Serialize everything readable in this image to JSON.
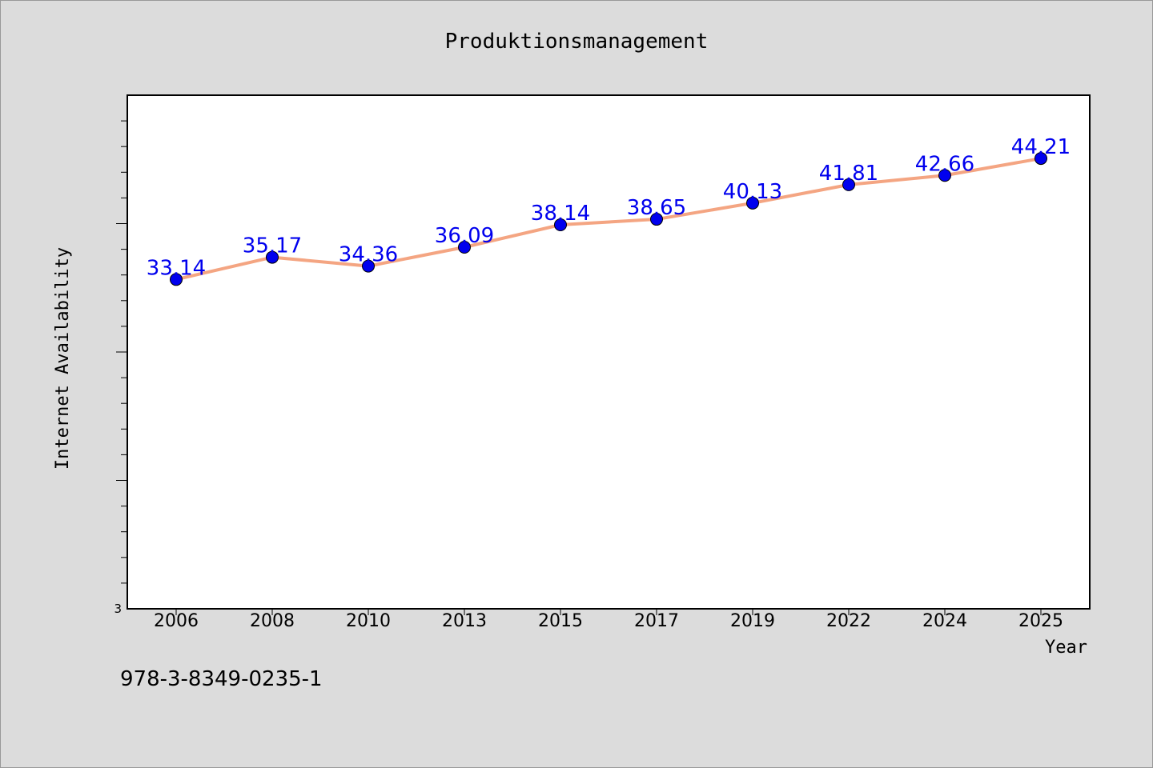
{
  "chart_data": {
    "type": "line",
    "title": "Produktionsmanagement",
    "xlabel": "Year",
    "ylabel": "Internet Availability",
    "categories": [
      "2006",
      "2008",
      "2010",
      "2013",
      "2015",
      "2017",
      "2019",
      "2022",
      "2024",
      "2025"
    ],
    "series": [
      {
        "values": [
          33.14,
          35.17,
          34.36,
          36.09,
          38.14,
          38.65,
          40.13,
          41.81,
          42.66,
          44.21
        ],
        "labels": [
          "33.14",
          "35.17",
          "34.36",
          "36.09",
          "38.14",
          "38.65",
          "40.13",
          "41.81",
          "42.66",
          "44.21"
        ]
      }
    ],
    "ylim": [
      3,
      50
    ],
    "y_tick_label": "3",
    "grid": false,
    "legend": "none",
    "colors": {
      "line": "#f4a582",
      "marker": "#0000ee",
      "data_label": "#0000ee",
      "plot_background": "#ffffff",
      "figure_background": "#dcdcdc"
    }
  },
  "footer": {
    "code": "978-3-8349-0235-1"
  }
}
